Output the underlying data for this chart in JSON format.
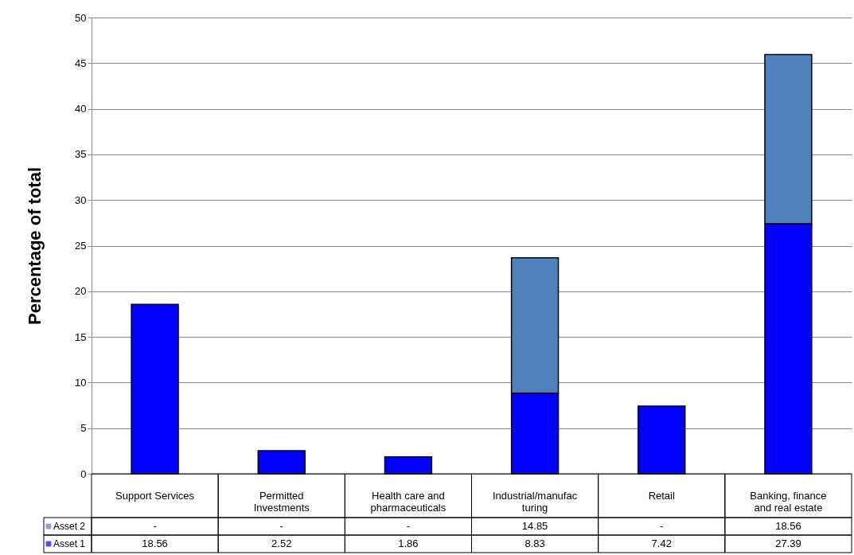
{
  "chart_data": {
    "type": "bar",
    "stacked": true,
    "ylabel": "Percentage of total",
    "categories": [
      "Support Services",
      "Permitted Investments",
      "Health care and pharmaceuticals",
      "Industrial/manufacturing",
      "Retail",
      "Banking, finance and real estate"
    ],
    "series": [
      {
        "name": "Asset 1",
        "color": "#0000ff",
        "values": [
          18.56,
          2.52,
          1.86,
          8.83,
          7.42,
          27.39
        ],
        "value_labels": [
          "18.56",
          "2.52",
          "1.86",
          "8.83",
          "7.42",
          "27.39"
        ]
      },
      {
        "name": "Asset 2",
        "color": "#4f81bd",
        "values": [
          null,
          null,
          null,
          14.85,
          null,
          18.56
        ],
        "value_labels": [
          "-",
          "-",
          "-",
          "14.85",
          "-",
          "18.56"
        ]
      }
    ],
    "ylim": [
      0,
      50
    ],
    "yticks": [
      0,
      5,
      10,
      15,
      20,
      25,
      30,
      35,
      40,
      45,
      50
    ],
    "grid": "y",
    "legend": "bottom left"
  }
}
